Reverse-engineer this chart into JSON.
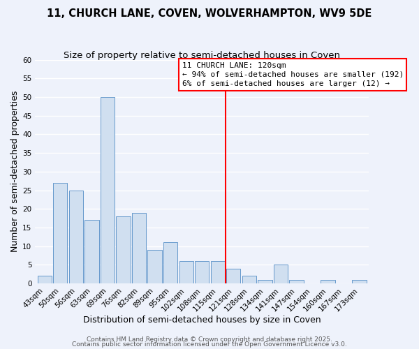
{
  "title": "11, CHURCH LANE, COVEN, WOLVERHAMPTON, WV9 5DE",
  "subtitle": "Size of property relative to semi-detached houses in Coven",
  "xlabel": "Distribution of semi-detached houses by size in Coven",
  "ylabel": "Number of semi-detached properties",
  "bar_labels": [
    "43sqm",
    "50sqm",
    "56sqm",
    "63sqm",
    "69sqm",
    "76sqm",
    "82sqm",
    "89sqm",
    "95sqm",
    "102sqm",
    "108sqm",
    "115sqm",
    "121sqm",
    "128sqm",
    "134sqm",
    "141sqm",
    "147sqm",
    "154sqm",
    "160sqm",
    "167sqm",
    "173sqm"
  ],
  "bar_values": [
    2,
    27,
    25,
    17,
    50,
    18,
    19,
    9,
    11,
    6,
    6,
    6,
    4,
    2,
    1,
    5,
    1,
    0,
    1,
    0,
    1
  ],
  "bar_color": "#d0dff0",
  "bar_edge_color": "#6699cc",
  "vline_color": "red",
  "vline_index": 12,
  "annotation_title": "11 CHURCH LANE: 120sqm",
  "annotation_line1": "← 94% of semi-detached houses are smaller (192)",
  "annotation_line2": "6% of semi-detached houses are larger (12) →",
  "ylim": [
    0,
    60
  ],
  "yticks": [
    0,
    5,
    10,
    15,
    20,
    25,
    30,
    35,
    40,
    45,
    50,
    55,
    60
  ],
  "footer1": "Contains HM Land Registry data © Crown copyright and database right 2025.",
  "footer2": "Contains public sector information licensed under the Open Government Licence v3.0.",
  "background_color": "#eef2fb",
  "plot_bg_color": "#eef2fb",
  "grid_color": "#ffffff",
  "title_fontsize": 10.5,
  "subtitle_fontsize": 9.5,
  "axis_label_fontsize": 9,
  "tick_fontsize": 7.5,
  "annotation_fontsize": 8,
  "footer_fontsize": 6.5
}
